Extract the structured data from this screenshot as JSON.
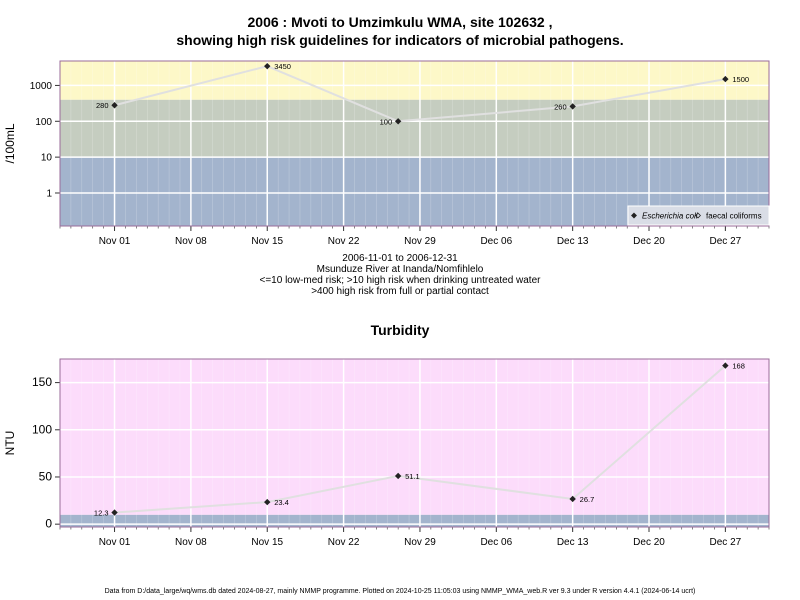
{
  "title_line1": "2006 : Mvoti to Umzimkulu WMA, site 102632 ,",
  "title_line2": "showing high risk guidelines for indicators of microbial pathogens.",
  "subtitle_lines": [
    "2006-11-01 to 2006-12-31",
    "Msunduze River at Inanda/Nomfihlelo",
    "<=10 low-med risk; >10 high risk when drinking untreated water",
    ">400 high risk from full or partial contact"
  ],
  "footer": "Data from D:/data_large/wq/wms.db dated 2024-08-27, mainly NMMP programme. Plotted on 2024-10-25 11:05:03 using NMMP_WMA_web.R ver 9.3 under R version 4.4.1 (2024-06-14 ucrt)",
  "colors": {
    "band_low": "#a3b4cd",
    "band_mid": "#c5cdc0",
    "band_high": "#fdf8c8",
    "turbidity_bg": "#fcdcfb",
    "turbidity_base": "#a3b4cd",
    "line": "#e0e0e0",
    "point": "#222222"
  },
  "chart_data": [
    {
      "type": "line",
      "title": "",
      "ylabel": "/100mL",
      "y_scale": "log",
      "y_ticks": [
        1,
        10,
        100,
        1000
      ],
      "y_tick_labels": [
        "1",
        "10",
        "100",
        "1000"
      ],
      "ylim": [
        0.12,
        4800
      ],
      "xlim": [
        "2006-10-27",
        "2006-12-31"
      ],
      "x_ticks": [
        "2006-11-01",
        "2006-11-08",
        "2006-11-15",
        "2006-11-22",
        "2006-11-29",
        "2006-12-06",
        "2006-12-13",
        "2006-12-20",
        "2006-12-27"
      ],
      "x_tick_labels": [
        "Nov 01",
        "Nov 08",
        "Nov 15",
        "Nov 22",
        "Nov 29",
        "Dec 06",
        "Dec 13",
        "Dec 20",
        "Dec 27"
      ],
      "bands": [
        {
          "from": 0.12,
          "to": 10,
          "color": "#a3b4cd"
        },
        {
          "from": 10,
          "to": 400,
          "color": "#c5cdc0"
        },
        {
          "from": 400,
          "to": 4800,
          "color": "#fdf8c8"
        }
      ],
      "grid": true,
      "legend_position": "bottom-right",
      "legend": [
        {
          "label": "Escherichia coli",
          "marker": "filled-diamond",
          "italic": true
        },
        {
          "label": "faecal coliforms",
          "marker": "open-diamond",
          "italic": false
        }
      ],
      "series": [
        {
          "name": "Escherichia coli",
          "x": [
            "2006-11-01",
            "2006-11-15",
            "2006-11-27",
            "2006-12-13",
            "2006-12-27"
          ],
          "values": [
            280,
            3450,
            100,
            260,
            1500
          ],
          "labels": [
            "280",
            "3450",
            "100",
            "260",
            "1500"
          ]
        }
      ]
    },
    {
      "type": "line",
      "title": "Turbidity",
      "ylabel": "NTU",
      "y_ticks": [
        0,
        50,
        100,
        150
      ],
      "y_tick_labels": [
        "0",
        "50",
        "100",
        "150"
      ],
      "ylim": [
        -3,
        175
      ],
      "xlim": [
        "2006-10-27",
        "2006-12-31"
      ],
      "x_ticks": [
        "2006-11-01",
        "2006-11-08",
        "2006-11-15",
        "2006-11-22",
        "2006-11-29",
        "2006-12-06",
        "2006-12-13",
        "2006-12-20",
        "2006-12-27"
      ],
      "x_tick_labels": [
        "Nov 01",
        "Nov 08",
        "Nov 15",
        "Nov 22",
        "Nov 29",
        "Dec 06",
        "Dec 13",
        "Dec 20",
        "Dec 27"
      ],
      "bands": [
        {
          "from": -3,
          "to": 10,
          "color": "#a3b4cd"
        },
        {
          "from": 10,
          "to": 175,
          "color": "#fcdcfb"
        }
      ],
      "grid": true,
      "series": [
        {
          "name": "",
          "x": [
            "2006-11-01",
            "2006-11-15",
            "2006-11-27",
            "2006-12-13",
            "2006-12-27"
          ],
          "values": [
            12.3,
            23.4,
            51.1,
            26.7,
            168
          ],
          "labels": [
            "12.3",
            "23.4",
            "51.1",
            "26.7",
            "168"
          ]
        }
      ]
    }
  ]
}
